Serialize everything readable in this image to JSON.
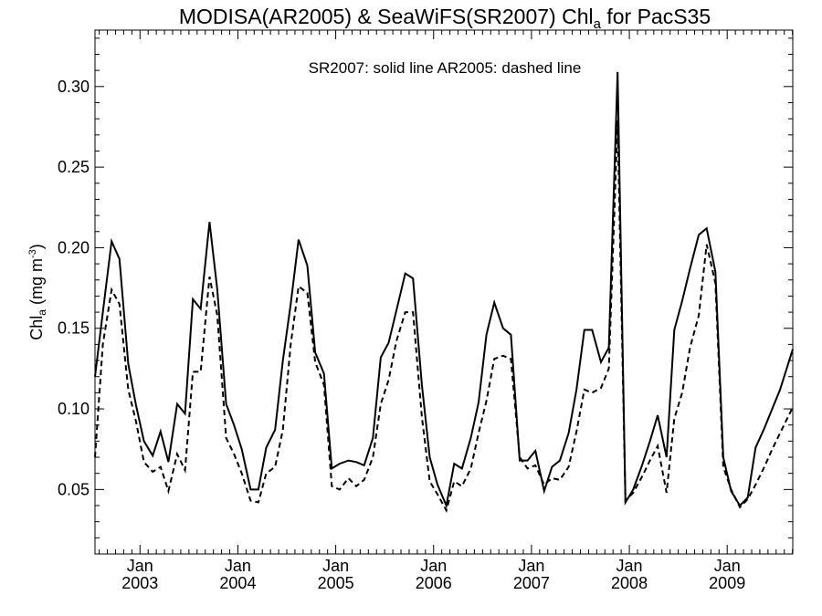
{
  "chart_data": {
    "type": "line",
    "title": {
      "main": "MODISA(AR2005) & SeaWiFS(SR2007)  Chl",
      "sub": "a",
      "tail": " for PacS35"
    },
    "annotation": "SR2007: solid line   AR2005: dashed line",
    "ylabel": {
      "main": "Chl",
      "sub": "a",
      "units": " (mg m",
      "sup": "-3",
      "close": ")"
    },
    "ylim": [
      0.01,
      0.335
    ],
    "xlim": [
      2002.54,
      2009.67
    ],
    "yticks": [
      {
        "v": 0.05,
        "label": "0.05"
      },
      {
        "v": 0.1,
        "label": "0.10"
      },
      {
        "v": 0.15,
        "label": "0.15"
      },
      {
        "v": 0.2,
        "label": "0.20"
      },
      {
        "v": 0.25,
        "label": "0.25"
      },
      {
        "v": 0.3,
        "label": "0.30"
      }
    ],
    "xticks": [
      {
        "v": 2003,
        "month": "Jan",
        "year": "2003"
      },
      {
        "v": 2004,
        "month": "Jan",
        "year": "2004"
      },
      {
        "v": 2005,
        "month": "Jan",
        "year": "2005"
      },
      {
        "v": 2006,
        "month": "Jan",
        "year": "2006"
      },
      {
        "v": 2007,
        "month": "Jan",
        "year": "2007"
      },
      {
        "v": 2008,
        "month": "Jan",
        "year": "2008"
      },
      {
        "v": 2009,
        "month": "Jan",
        "year": "2009"
      }
    ],
    "grid": false,
    "series": [
      {
        "name": "SR2007",
        "style": "solid",
        "color": "#000000",
        "x": [
          2002.54,
          2002.62,
          2002.71,
          2002.79,
          2002.88,
          2002.96,
          2003.04,
          2003.13,
          2003.21,
          2003.29,
          2003.38,
          2003.46,
          2003.54,
          2003.62,
          2003.71,
          2003.79,
          2003.88,
          2003.96,
          2004.04,
          2004.13,
          2004.21,
          2004.29,
          2004.38,
          2004.46,
          2004.54,
          2004.62,
          2004.71,
          2004.79,
          2004.88,
          2004.96,
          2005.04,
          2005.13,
          2005.21,
          2005.29,
          2005.38,
          2005.46,
          2005.54,
          2005.62,
          2005.71,
          2005.79,
          2005.88,
          2005.96,
          2006.04,
          2006.13,
          2006.21,
          2006.29,
          2006.38,
          2006.46,
          2006.54,
          2006.62,
          2006.71,
          2006.79,
          2006.88,
          2006.96,
          2007.04,
          2007.13,
          2007.21,
          2007.29,
          2007.38,
          2007.46,
          2007.54,
          2007.62,
          2007.71,
          2007.79,
          2007.88,
          2007.96,
          2008.04,
          2008.13,
          2008.21,
          2008.29,
          2008.38,
          2008.46,
          2008.54,
          2008.62,
          2008.71,
          2008.79,
          2008.88,
          2008.96,
          2009.04,
          2009.13,
          2009.21,
          2009.29,
          2009.38,
          2009.46,
          2009.54,
          2009.67
        ],
        "y": [
          0.12,
          0.16,
          0.204,
          0.193,
          0.128,
          0.102,
          0.08,
          0.071,
          0.086,
          0.067,
          0.103,
          0.097,
          0.168,
          0.162,
          0.216,
          0.174,
          0.103,
          0.09,
          0.075,
          0.05,
          0.05,
          0.076,
          0.087,
          0.13,
          0.165,
          0.205,
          0.189,
          0.135,
          0.122,
          0.063,
          0.066,
          0.068,
          0.067,
          0.065,
          0.082,
          0.132,
          0.141,
          0.161,
          0.184,
          0.181,
          0.115,
          0.07,
          0.053,
          0.04,
          0.066,
          0.063,
          0.082,
          0.104,
          0.146,
          0.166,
          0.15,
          0.146,
          0.068,
          0.068,
          0.074,
          0.049,
          0.064,
          0.068,
          0.085,
          0.112,
          0.149,
          0.149,
          0.129,
          0.138,
          0.309,
          0.042,
          0.05,
          0.065,
          0.08,
          0.096,
          0.07,
          0.149,
          0.167,
          0.187,
          0.208,
          0.212,
          0.185,
          0.07,
          0.049,
          0.04,
          0.045,
          0.076,
          0.088,
          0.1,
          0.112,
          0.137
        ]
      },
      {
        "name": "AR2005",
        "style": "dashed",
        "color": "#000000",
        "x": [
          2002.54,
          2002.62,
          2002.71,
          2002.79,
          2002.88,
          2002.96,
          2003.04,
          2003.13,
          2003.21,
          2003.29,
          2003.38,
          2003.46,
          2003.54,
          2003.62,
          2003.71,
          2003.79,
          2003.88,
          2003.96,
          2004.04,
          2004.13,
          2004.21,
          2004.29,
          2004.38,
          2004.46,
          2004.54,
          2004.62,
          2004.71,
          2004.79,
          2004.88,
          2004.96,
          2005.04,
          2005.13,
          2005.21,
          2005.29,
          2005.38,
          2005.46,
          2005.54,
          2005.62,
          2005.71,
          2005.79,
          2005.88,
          2005.96,
          2006.04,
          2006.13,
          2006.21,
          2006.29,
          2006.38,
          2006.46,
          2006.54,
          2006.62,
          2006.71,
          2006.79,
          2006.88,
          2006.96,
          2007.04,
          2007.13,
          2007.21,
          2007.29,
          2007.38,
          2007.46,
          2007.54,
          2007.62,
          2007.71,
          2007.79,
          2007.88,
          2007.96,
          2008.04,
          2008.13,
          2008.21,
          2008.29,
          2008.38,
          2008.46,
          2008.54,
          2008.62,
          2008.71,
          2008.79,
          2008.88,
          2008.96,
          2009.04,
          2009.13,
          2009.21,
          2009.29,
          2009.38,
          2009.46,
          2009.54,
          2009.67
        ],
        "y": [
          0.07,
          0.14,
          0.174,
          0.165,
          0.112,
          0.092,
          0.067,
          0.061,
          0.064,
          0.049,
          0.072,
          0.062,
          0.123,
          0.123,
          0.182,
          0.158,
          0.082,
          0.072,
          0.06,
          0.043,
          0.042,
          0.06,
          0.064,
          0.087,
          0.14,
          0.176,
          0.172,
          0.129,
          0.115,
          0.052,
          0.05,
          0.057,
          0.052,
          0.056,
          0.07,
          0.103,
          0.118,
          0.142,
          0.16,
          0.16,
          0.095,
          0.055,
          0.047,
          0.037,
          0.055,
          0.052,
          0.063,
          0.085,
          0.105,
          0.131,
          0.133,
          0.131,
          0.07,
          0.063,
          0.065,
          0.053,
          0.057,
          0.056,
          0.064,
          0.086,
          0.112,
          0.11,
          0.113,
          0.125,
          0.279,
          0.043,
          0.048,
          0.058,
          0.068,
          0.077,
          0.048,
          0.094,
          0.11,
          0.138,
          0.158,
          0.202,
          0.178,
          0.064,
          0.05,
          0.039,
          0.044,
          0.053,
          0.064,
          0.075,
          0.085,
          0.101
        ]
      }
    ]
  }
}
